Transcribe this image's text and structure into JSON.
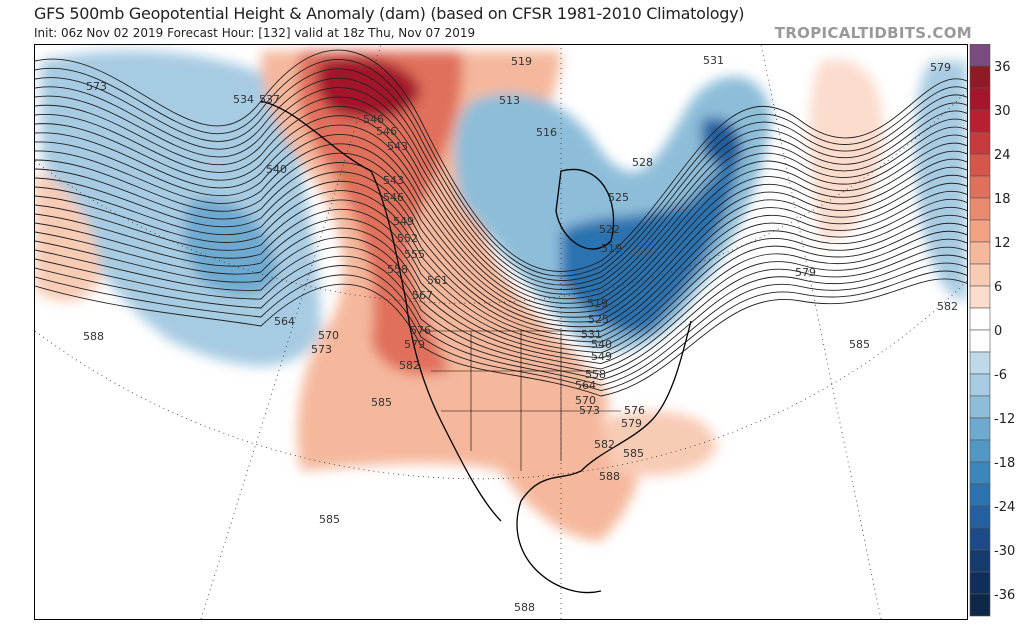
{
  "header": {
    "title": "GFS 500mb Geopotential Height & Anomaly (dam) (based on CFSR 1981-2010 Climatology)",
    "subtitle": "Init: 06z Nov 02 2019   Forecast Hour: [132]   valid at 18z Thu, Nov 07 2019",
    "brand": "TROPICALTIDBITS.COM"
  },
  "colorbar": {
    "labels": [
      "36",
      "30",
      "24",
      "18",
      "12",
      "6",
      "0",
      "-6",
      "-12",
      "-18",
      "-24",
      "-30",
      "-36"
    ],
    "colors": [
      "#7a4b7e",
      "#8e1a26",
      "#a3162b",
      "#b82032",
      "#c73a3d",
      "#d5564a",
      "#e0705b",
      "#e98b6f",
      "#f1a384",
      "#f5b89c",
      "#f8cbb5",
      "#fbdccd",
      "#ffffff",
      "#ffffff",
      "#c0d9e9",
      "#a7cbe2",
      "#8dbdd9",
      "#6ea9d0",
      "#5198c5",
      "#3c86bb",
      "#2c72b0",
      "#245f9f",
      "#1c4b87",
      "#153b6f",
      "#0f2e5a",
      "#0d2748"
    ]
  },
  "contour_labels": [
    "573",
    "534",
    "537",
    "540",
    "546",
    "546",
    "543",
    "543",
    "546",
    "549",
    "552",
    "555",
    "558",
    "561",
    "567",
    "570",
    "564",
    "573",
    "576",
    "579",
    "582",
    "585",
    "588",
    "519",
    "513",
    "516",
    "528",
    "525",
    "522",
    "519",
    "519",
    "525",
    "531",
    "540",
    "549",
    "558",
    "564",
    "570",
    "573",
    "576",
    "579",
    "582",
    "585",
    "588",
    "531",
    "579",
    "579",
    "582",
    "585",
    "585",
    "588"
  ]
}
